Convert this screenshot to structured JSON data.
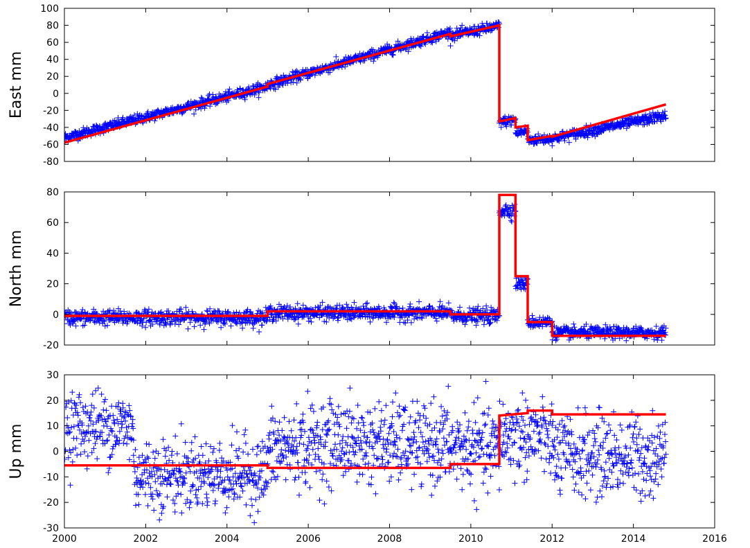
{
  "chart_data": [
    {
      "type": "scatter",
      "ylabel": "East mm",
      "xlim": [
        2000,
        2016
      ],
      "ylim": [
        -80,
        100
      ],
      "yticks": [
        -80,
        -60,
        -40,
        -20,
        0,
        20,
        40,
        60,
        80,
        100
      ],
      "xticks": [],
      "grid": false,
      "colors": {
        "observations": "#0000ff",
        "model": "#ff0000"
      },
      "observations": {
        "marker": "+",
        "segments": [
          {
            "x0": 2000.0,
            "x1": 2005.0,
            "y0": -52,
            "y1": 8,
            "noise": 3
          },
          {
            "x0": 2005.0,
            "x1": 2009.5,
            "y0": 10,
            "y1": 72,
            "noise": 3
          },
          {
            "x0": 2009.5,
            "x1": 2010.7,
            "y0": 68,
            "y1": 79,
            "noise": 3
          },
          {
            "x0": 2010.7,
            "x1": 2011.1,
            "y0": -34,
            "y1": -31,
            "noise": 3
          },
          {
            "x0": 2011.1,
            "x1": 2011.4,
            "y0": -47,
            "y1": -44,
            "noise": 3
          },
          {
            "x0": 2011.4,
            "x1": 2012.0,
            "y0": -55,
            "y1": -53,
            "noise": 3
          },
          {
            "x0": 2012.0,
            "x1": 2014.8,
            "y0": -53,
            "y1": -26,
            "noise": 3
          }
        ]
      },
      "model_line": [
        [
          2000.0,
          -58
        ],
        [
          2005.0,
          8
        ],
        [
          2005.0,
          11
        ],
        [
          2009.5,
          70
        ],
        [
          2009.5,
          67
        ],
        [
          2010.7,
          80
        ],
        [
          2010.7,
          -33
        ],
        [
          2011.1,
          -29
        ],
        [
          2011.1,
          -40
        ],
        [
          2011.4,
          -38
        ],
        [
          2011.4,
          -55
        ],
        [
          2012.0,
          -50
        ],
        [
          2012.0,
          -51
        ],
        [
          2014.8,
          -13
        ]
      ]
    },
    {
      "type": "scatter",
      "ylabel": "North mm",
      "xlim": [
        2000,
        2016
      ],
      "ylim": [
        -20,
        80
      ],
      "yticks": [
        -20,
        0,
        20,
        40,
        60,
        80
      ],
      "xticks": [],
      "grid": false,
      "colors": {
        "observations": "#0000ff",
        "model": "#ff0000"
      },
      "observations": {
        "marker": "+",
        "segments": [
          {
            "x0": 2000.0,
            "x1": 2005.0,
            "y0": -2,
            "y1": -2,
            "noise": 2.5
          },
          {
            "x0": 2005.0,
            "x1": 2009.5,
            "y0": 1,
            "y1": 1,
            "noise": 2.5
          },
          {
            "x0": 2009.5,
            "x1": 2010.7,
            "y0": -1,
            "y1": -1,
            "noise": 2.5
          },
          {
            "x0": 2010.7,
            "x1": 2011.1,
            "y0": 68,
            "y1": 68,
            "noise": 2.5
          },
          {
            "x0": 2011.1,
            "x1": 2011.4,
            "y0": 20,
            "y1": 20,
            "noise": 2.0
          },
          {
            "x0": 2011.4,
            "x1": 2012.0,
            "y0": -5,
            "y1": -5,
            "noise": 2.0
          },
          {
            "x0": 2012.0,
            "x1": 2014.8,
            "y0": -12,
            "y1": -12,
            "noise": 2.0
          }
        ]
      },
      "model_line": [
        [
          2000.0,
          -1
        ],
        [
          2005.0,
          -1
        ],
        [
          2005.0,
          2
        ],
        [
          2009.5,
          2
        ],
        [
          2009.5,
          0
        ],
        [
          2010.7,
          0
        ],
        [
          2010.7,
          78
        ],
        [
          2011.1,
          78
        ],
        [
          2011.1,
          25
        ],
        [
          2011.4,
          25
        ],
        [
          2011.4,
          -5
        ],
        [
          2012.0,
          -5
        ],
        [
          2012.0,
          -14
        ],
        [
          2014.8,
          -14
        ]
      ]
    },
    {
      "type": "scatter",
      "ylabel": "Up mm",
      "xlim": [
        2000,
        2016
      ],
      "ylim": [
        -30,
        30
      ],
      "yticks": [
        -30,
        -20,
        -10,
        0,
        10,
        20,
        30
      ],
      "xticks": [
        2000,
        2002,
        2004,
        2006,
        2008,
        2010,
        2012,
        2014,
        2016
      ],
      "grid": false,
      "colors": {
        "observations": "#0000ff",
        "model": "#ff0000"
      },
      "observations": {
        "marker": "+",
        "segments": [
          {
            "x0": 2000.0,
            "x1": 2001.7,
            "y0": 10,
            "y1": 10,
            "noise": 7
          },
          {
            "x0": 2001.7,
            "x1": 2005.0,
            "y0": -9,
            "y1": -9,
            "noise": 7
          },
          {
            "x0": 2005.0,
            "x1": 2007.0,
            "y0": 0,
            "y1": 5,
            "noise": 8
          },
          {
            "x0": 2007.0,
            "x1": 2009.5,
            "y0": 3,
            "y1": 3,
            "noise": 8
          },
          {
            "x0": 2009.5,
            "x1": 2010.7,
            "y0": 1,
            "y1": 1,
            "noise": 8
          },
          {
            "x0": 2010.7,
            "x1": 2012.0,
            "y0": 6,
            "y1": 6,
            "noise": 8
          },
          {
            "x0": 2012.0,
            "x1": 2014.8,
            "y0": -2,
            "y1": -2,
            "noise": 8
          }
        ]
      },
      "model_line": [
        [
          2000.0,
          -5.5
        ],
        [
          2005.0,
          -5.5
        ],
        [
          2005.0,
          -6.5
        ],
        [
          2009.5,
          -6.5
        ],
        [
          2009.5,
          -5
        ],
        [
          2010.7,
          -5
        ],
        [
          2010.7,
          14
        ],
        [
          2011.4,
          15
        ],
        [
          2011.4,
          16
        ],
        [
          2012.0,
          16
        ],
        [
          2012.0,
          14.5
        ],
        [
          2014.8,
          14.5
        ]
      ]
    }
  ]
}
